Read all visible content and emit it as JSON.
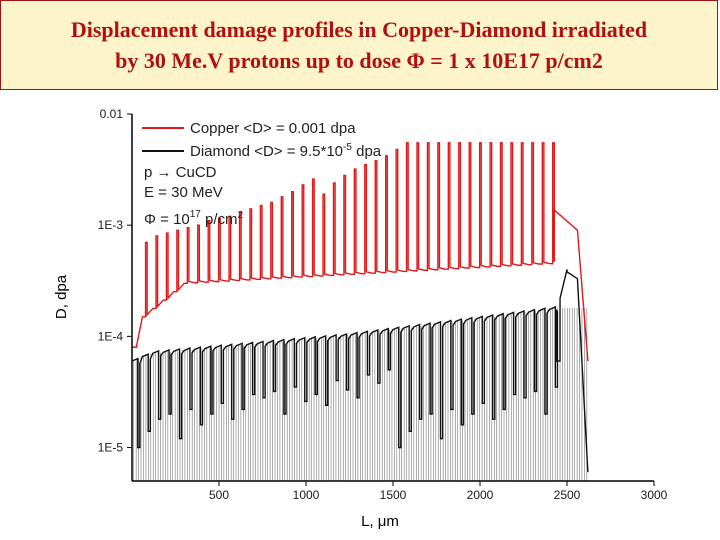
{
  "title": {
    "line1": "Displacement damage profiles in Copper-Diamond irradiated",
    "line2": "by 30 Me.V protons up to dose Φ = 1 x 10E17 p/cm2",
    "color": "#b01010"
  },
  "chart_data": {
    "type": "line",
    "title": "Displacement damage profiles in Copper-Diamond irradiated by 30 Me.V protons up to dose Φ = 1 x 10E17 p/cm2",
    "xlabel": "L, μm",
    "ylabel": "D, dpa",
    "xlim": [
      0,
      3000
    ],
    "ylim": [
      5e-06,
      0.01
    ],
    "yscale": "log",
    "x_ticks": [
      {
        "value": 500,
        "label": "500"
      },
      {
        "value": 1000,
        "label": "1000"
      },
      {
        "value": 1500,
        "label": "1500"
      },
      {
        "value": 2000,
        "label": "2000"
      },
      {
        "value": 2500,
        "label": "2500"
      },
      {
        "value": 3000,
        "label": "3000"
      }
    ],
    "y_ticks": [
      {
        "value": 0.01,
        "label": "0.01"
      },
      {
        "value": 0.001,
        "label": "1E-3"
      },
      {
        "value": 0.0001,
        "label": "1E-4"
      },
      {
        "value": 1e-05,
        "label": "1E-5"
      }
    ],
    "legend": {
      "position": "top-left",
      "copper": "Copper <D> = 0.001 dpa",
      "diamond_pre": "Diamond <D> = 9.5*10",
      "diamond_sup": "-5",
      "diamond_post": " dpa",
      "reaction": "p → CuCD",
      "energy": "E = 30 MeV",
      "dose_pre": "Φ = 10",
      "dose_sup": "17",
      "dose_mid": " p/cm",
      "dose_sup2": "2"
    },
    "series": [
      {
        "name": "Copper",
        "color": "#e01818",
        "cell_width": 60,
        "x_start": 0,
        "x_end": 2620,
        "base": [
          8e-05,
          0.00015,
          0.0003,
          0.00045
        ],
        "base_x": [
          0,
          60,
          300,
          2380
        ],
        "spike_values": [
          0.0007,
          0.0008,
          0.00085,
          0.0009,
          0.00095,
          0.001,
          0.0011,
          0.00115,
          0.0012,
          0.0013,
          0.0014,
          0.0015,
          0.0016,
          0.0018,
          0.002,
          0.0023,
          0.0026,
          0.0019,
          0.0024,
          0.0028,
          0.0032,
          0.0035,
          0.0038,
          0.0042,
          0.0048,
          0.0055
        ],
        "tail": {
          "x": [
            2420,
            2560,
            2620,
            2620
          ],
          "values": [
            0.0014,
            0.0009,
            6e-05,
            6e-05
          ]
        }
      },
      {
        "name": "Diamond",
        "color": "#111111",
        "cell_width": 60,
        "x_start": 0,
        "x_end": 2620,
        "base": [
          6e-05,
          7e-05,
          0.0001,
          0.00018
        ],
        "base_x": [
          0,
          100,
          1200,
          2460
        ],
        "dip_values": [
          1e-05,
          1.4e-05,
          1.8e-05,
          2e-05,
          1.2e-05,
          2.2e-05,
          1.6e-05,
          2e-05,
          2.5e-05,
          1.8e-05,
          2.2e-05,
          3e-05,
          2.8e-05,
          3.2e-05,
          2e-05,
          3.5e-05,
          2.6e-05,
          3e-05,
          2.4e-05,
          4e-05,
          3.3e-05,
          2.8e-05,
          4.5e-05,
          3.8e-05,
          5e-05
        ],
        "peak": {
          "x": 2500,
          "value": 0.0004
        },
        "tail": {
          "x": [
            2500,
            2560,
            2620,
            2620
          ],
          "values": [
            0.00038,
            0.00033,
            6e-06,
            6e-06
          ]
        }
      }
    ]
  }
}
